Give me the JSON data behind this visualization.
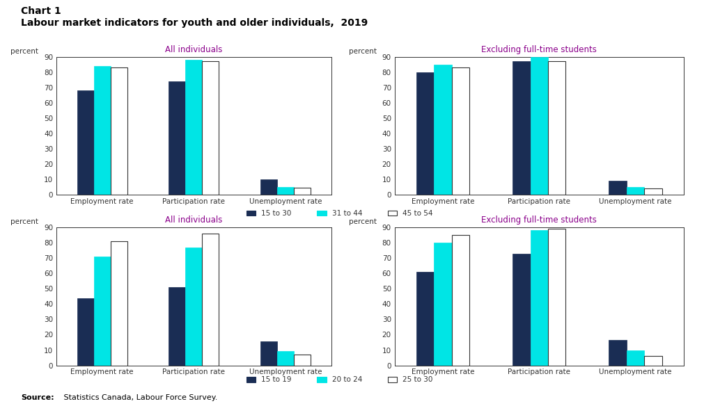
{
  "title_line1": "Chart 1",
  "title_line2": "Labour market indicators for youth and older individuals,  2019",
  "source_bold": "Source:",
  "source_rest": " Statistics Canada, Labour Force Survey.",
  "top_left": {
    "subtitle": "All individuals",
    "categories": [
      "Employment rate",
      "Participation rate",
      "Unemployment rate"
    ],
    "series": [
      {
        "label": "15 to 30",
        "values": [
          68,
          74,
          10
        ],
        "color": "#1a2d54"
      },
      {
        "label": "31 to 44",
        "values": [
          84,
          88,
          5
        ],
        "color": "#00e5e5"
      },
      {
        "label": "45 to 54",
        "values": [
          83,
          87,
          4.5
        ],
        "color": "#ffffff"
      }
    ]
  },
  "top_right": {
    "subtitle": "Excluding full-time students",
    "categories": [
      "Employment rate",
      "Participation rate",
      "Unemployment rate"
    ],
    "series": [
      {
        "label": "15 to 30",
        "values": [
          80,
          87,
          9
        ],
        "color": "#1a2d54"
      },
      {
        "label": "31 to 44",
        "values": [
          85,
          90,
          5
        ],
        "color": "#00e5e5"
      },
      {
        "label": "45 to 54",
        "values": [
          83,
          87,
          4
        ],
        "color": "#ffffff"
      }
    ]
  },
  "bottom_left": {
    "subtitle": "All individuals",
    "categories": [
      "Employment rate",
      "Participation rate",
      "Unemployment rate"
    ],
    "series": [
      {
        "label": "15 to 19",
        "values": [
          44,
          51,
          15.5
        ],
        "color": "#1a2d54"
      },
      {
        "label": "20 to 24",
        "values": [
          71,
          77,
          9.5
        ],
        "color": "#00e5e5"
      },
      {
        "label": "25 to 30",
        "values": [
          81,
          86,
          7
        ],
        "color": "#ffffff"
      }
    ]
  },
  "bottom_right": {
    "subtitle": "Excluding full-time students",
    "categories": [
      "Employment rate",
      "Participation rate",
      "Unemployment rate"
    ],
    "series": [
      {
        "label": "15 to 19",
        "values": [
          61,
          73,
          16.5
        ],
        "color": "#1a2d54"
      },
      {
        "label": "20 to 24",
        "values": [
          80,
          88,
          10
        ],
        "color": "#00e5e5"
      },
      {
        "label": "25 to 30",
        "values": [
          85,
          89,
          6
        ],
        "color": "#ffffff"
      }
    ]
  },
  "legend_top": [
    "15 to 30",
    "31 to 44",
    "45 to 54"
  ],
  "legend_bottom": [
    "15 to 19",
    "20 to 24",
    "25 to 30"
  ],
  "legend_colors": [
    "#1a2d54",
    "#00e5e5",
    "#ffffff"
  ],
  "subtitle_color": "#8b008b",
  "ylim": [
    0,
    90
  ],
  "yticks": [
    0,
    10,
    20,
    30,
    40,
    50,
    60,
    70,
    80,
    90
  ]
}
